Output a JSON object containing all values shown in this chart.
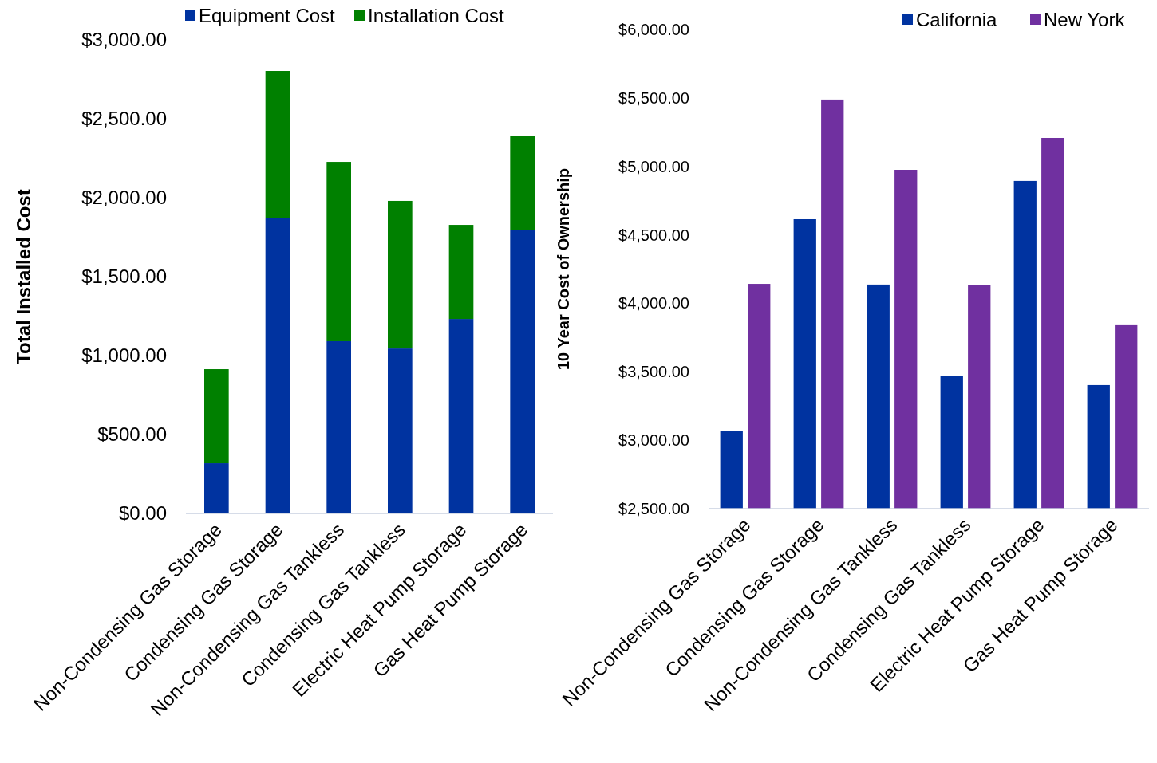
{
  "chart_data": [
    {
      "type": "bar",
      "stacked": true,
      "ylabel": "Total Installed Cost",
      "legend": "top",
      "grid": false,
      "categories": [
        "Non-Condensing Gas Storage",
        "Condensing Gas Storage",
        "Non-Condensing Gas Tankless",
        "Condensing Gas Tankless",
        "Electric Heat Pump Storage",
        "Gas Heat Pump Storage"
      ],
      "series": [
        {
          "name": "Equipment Cost",
          "color": "#0033a0",
          "values": [
            318,
            1869,
            1091,
            1045,
            1232,
            1793
          ]
        },
        {
          "name": "Installation Cost",
          "color": "#008000",
          "values": [
            596,
            934,
            1136,
            935,
            596,
            596
          ]
        }
      ],
      "ylim": [
        0,
        3000
      ],
      "yticks": [
        {
          "value": 0,
          "label": "$0.00"
        },
        {
          "value": 500,
          "label": "$500.00"
        },
        {
          "value": 1000,
          "label": "$1,000.00"
        },
        {
          "value": 1500,
          "label": "$1,500.00"
        },
        {
          "value": 2000,
          "label": "$2,000.00"
        },
        {
          "value": 2500,
          "label": "$2,500.00"
        },
        {
          "value": 3000,
          "label": "$3,000.00"
        }
      ]
    },
    {
      "type": "bar",
      "ylabel": "10 Year Cost of Ownership",
      "legend": "top right",
      "grid": false,
      "categories": [
        "Non-Condensing Gas Storage",
        "Condensing Gas Storage",
        "Non-Condensing Gas Tankless",
        "Condensing Gas Tankless",
        "Electric Heat Pump Storage",
        "Gas Heat Pump Storage"
      ],
      "series": [
        {
          "name": "California",
          "color": "#0033a0",
          "values": [
            3065,
            4614,
            4137,
            3467,
            4894,
            3403
          ]
        },
        {
          "name": "New York",
          "color": "#7030a0",
          "values": [
            4142,
            5488,
            4975,
            4131,
            5208,
            3840
          ]
        }
      ],
      "ylim": [
        2500,
        6000
      ],
      "yticks": [
        {
          "value": 2500,
          "label": "$2,500.00"
        },
        {
          "value": 3000,
          "label": "$3,000.00"
        },
        {
          "value": 3500,
          "label": "$3,500.00"
        },
        {
          "value": 4000,
          "label": "$4,000.00"
        },
        {
          "value": 4500,
          "label": "$4,500.00"
        },
        {
          "value": 5000,
          "label": "$5,000.00"
        },
        {
          "value": 5500,
          "label": "$5,500.00"
        },
        {
          "value": 6000,
          "label": "$6,000.00"
        }
      ]
    }
  ]
}
